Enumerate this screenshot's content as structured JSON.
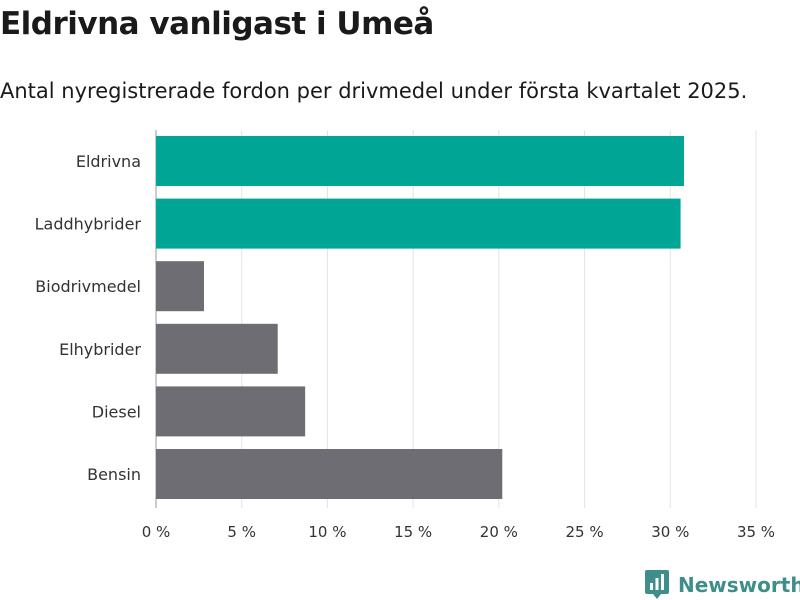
{
  "header": {
    "title": "Eldrivna vanligast i Umeå",
    "subtitle": "Antal nyregistrerade fordon per drivmedel under första kvartalet 2025."
  },
  "chart_data": {
    "type": "bar",
    "orientation": "horizontal",
    "categories": [
      "Eldrivna",
      "Laddhybrider",
      "Biodrivmedel",
      "Elhybrider",
      "Diesel",
      "Bensin"
    ],
    "values": [
      30.8,
      30.6,
      2.8,
      7.1,
      8.7,
      20.2
    ],
    "bar_colors": [
      "#00a596",
      "#00a596",
      "#6e6d73",
      "#6e6d73",
      "#6e6d73",
      "#6e6d73"
    ],
    "xlim": [
      0,
      35
    ],
    "x_ticks": [
      0,
      5,
      10,
      15,
      20,
      25,
      30,
      35
    ],
    "tick_suffix": " %",
    "grid": true
  },
  "branding": {
    "name": "Newsworthy",
    "logo_icon": "newsworthy-logo-icon",
    "color": "#3e8f8b"
  }
}
